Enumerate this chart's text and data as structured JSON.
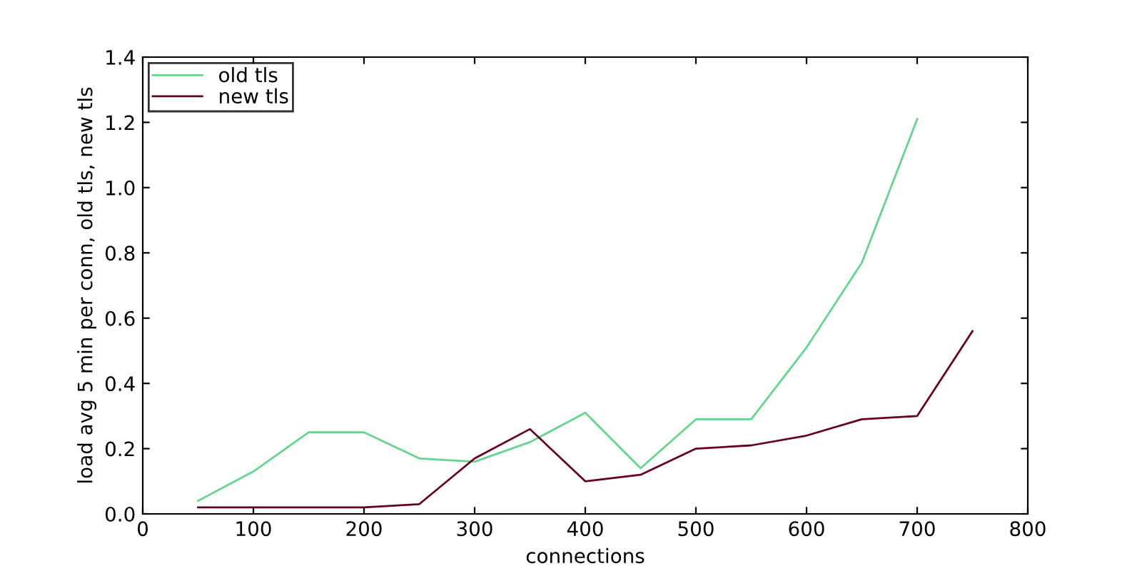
{
  "chart_data": {
    "type": "line",
    "xlabel": "connections",
    "ylabel": "load avg 5 min per conn, old tls, new tls",
    "series": [
      {
        "name": "old tls",
        "color": "#66d48f",
        "x": [
          50,
          100,
          150,
          200,
          250,
          300,
          350,
          400,
          450,
          500,
          550,
          600,
          650,
          700
        ],
        "values": [
          0.04,
          0.13,
          0.25,
          0.25,
          0.17,
          0.16,
          0.22,
          0.31,
          0.14,
          0.29,
          0.29,
          0.51,
          0.77,
          1.21
        ]
      },
      {
        "name": "new tls",
        "color": "#660022",
        "x": [
          50,
          100,
          150,
          200,
          250,
          300,
          350,
          400,
          450,
          500,
          550,
          600,
          650,
          700,
          750
        ],
        "values": [
          0.02,
          0.02,
          0.02,
          0.02,
          0.03,
          0.17,
          0.26,
          0.1,
          0.12,
          0.2,
          0.21,
          0.24,
          0.29,
          0.3,
          0.56
        ]
      }
    ],
    "xlim": [
      0,
      800
    ],
    "xticks": [
      0,
      100,
      200,
      300,
      400,
      500,
      600,
      700,
      800
    ],
    "ylim": [
      0,
      1.4
    ],
    "yticks": [
      {
        "value": 0,
        "label": "0.0"
      },
      {
        "value": 0.2,
        "label": "0.2"
      },
      {
        "value": 0.4,
        "label": "0.4"
      },
      {
        "value": 0.6,
        "label": "0.6"
      },
      {
        "value": 0.8,
        "label": "0.8"
      },
      {
        "value": 1.0,
        "label": "1.0"
      },
      {
        "value": 1.2,
        "label": "1.2"
      },
      {
        "value": 1.4,
        "label": "1.4"
      }
    ],
    "grid": false,
    "legend": "top left"
  }
}
